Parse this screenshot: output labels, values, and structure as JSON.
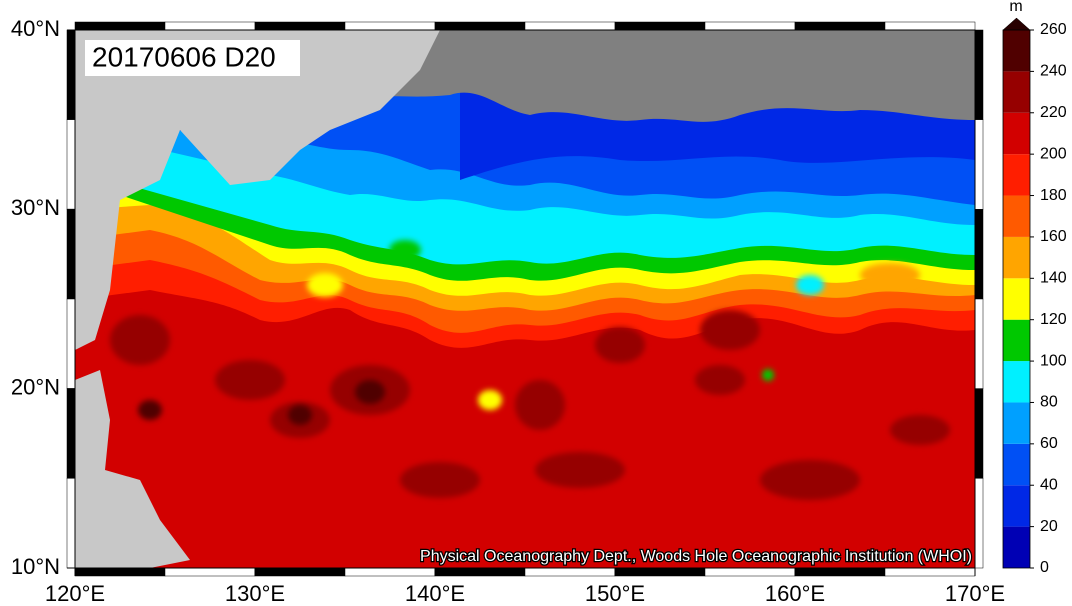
{
  "map": {
    "title": "20170606 D20",
    "credit": "Physical Oceanography Dept., Woods Hole Oceanographic Institution (WHOI)",
    "xlim": [
      120,
      170
    ],
    "ylim": [
      10,
      40
    ],
    "xticks": [
      {
        "value": 120,
        "label": "120°E"
      },
      {
        "value": 130,
        "label": "130°E"
      },
      {
        "value": 140,
        "label": "140°E"
      },
      {
        "value": 150,
        "label": "150°E"
      },
      {
        "value": 160,
        "label": "160°E"
      },
      {
        "value": 170,
        "label": "170°E"
      }
    ],
    "yticks": [
      {
        "value": 10,
        "label": "10°N"
      },
      {
        "value": 20,
        "label": "20°N"
      },
      {
        "value": 30,
        "label": "30°N"
      },
      {
        "value": 40,
        "label": "40°N"
      }
    ]
  },
  "colorbar": {
    "unit": "m",
    "lim": [
      0,
      260
    ],
    "ticks": [
      0,
      20,
      40,
      60,
      80,
      100,
      120,
      140,
      160,
      180,
      200,
      220,
      240,
      260
    ],
    "colors": [
      "#0000b4",
      "#0028e6",
      "#0050f5",
      "#00a0ff",
      "#00f0ff",
      "#00c800",
      "#ffff00",
      "#ffa500",
      "#ff5a00",
      "#ff1e00",
      "#d20000",
      "#960000",
      "#500000"
    ],
    "over_color": "#280000"
  }
}
